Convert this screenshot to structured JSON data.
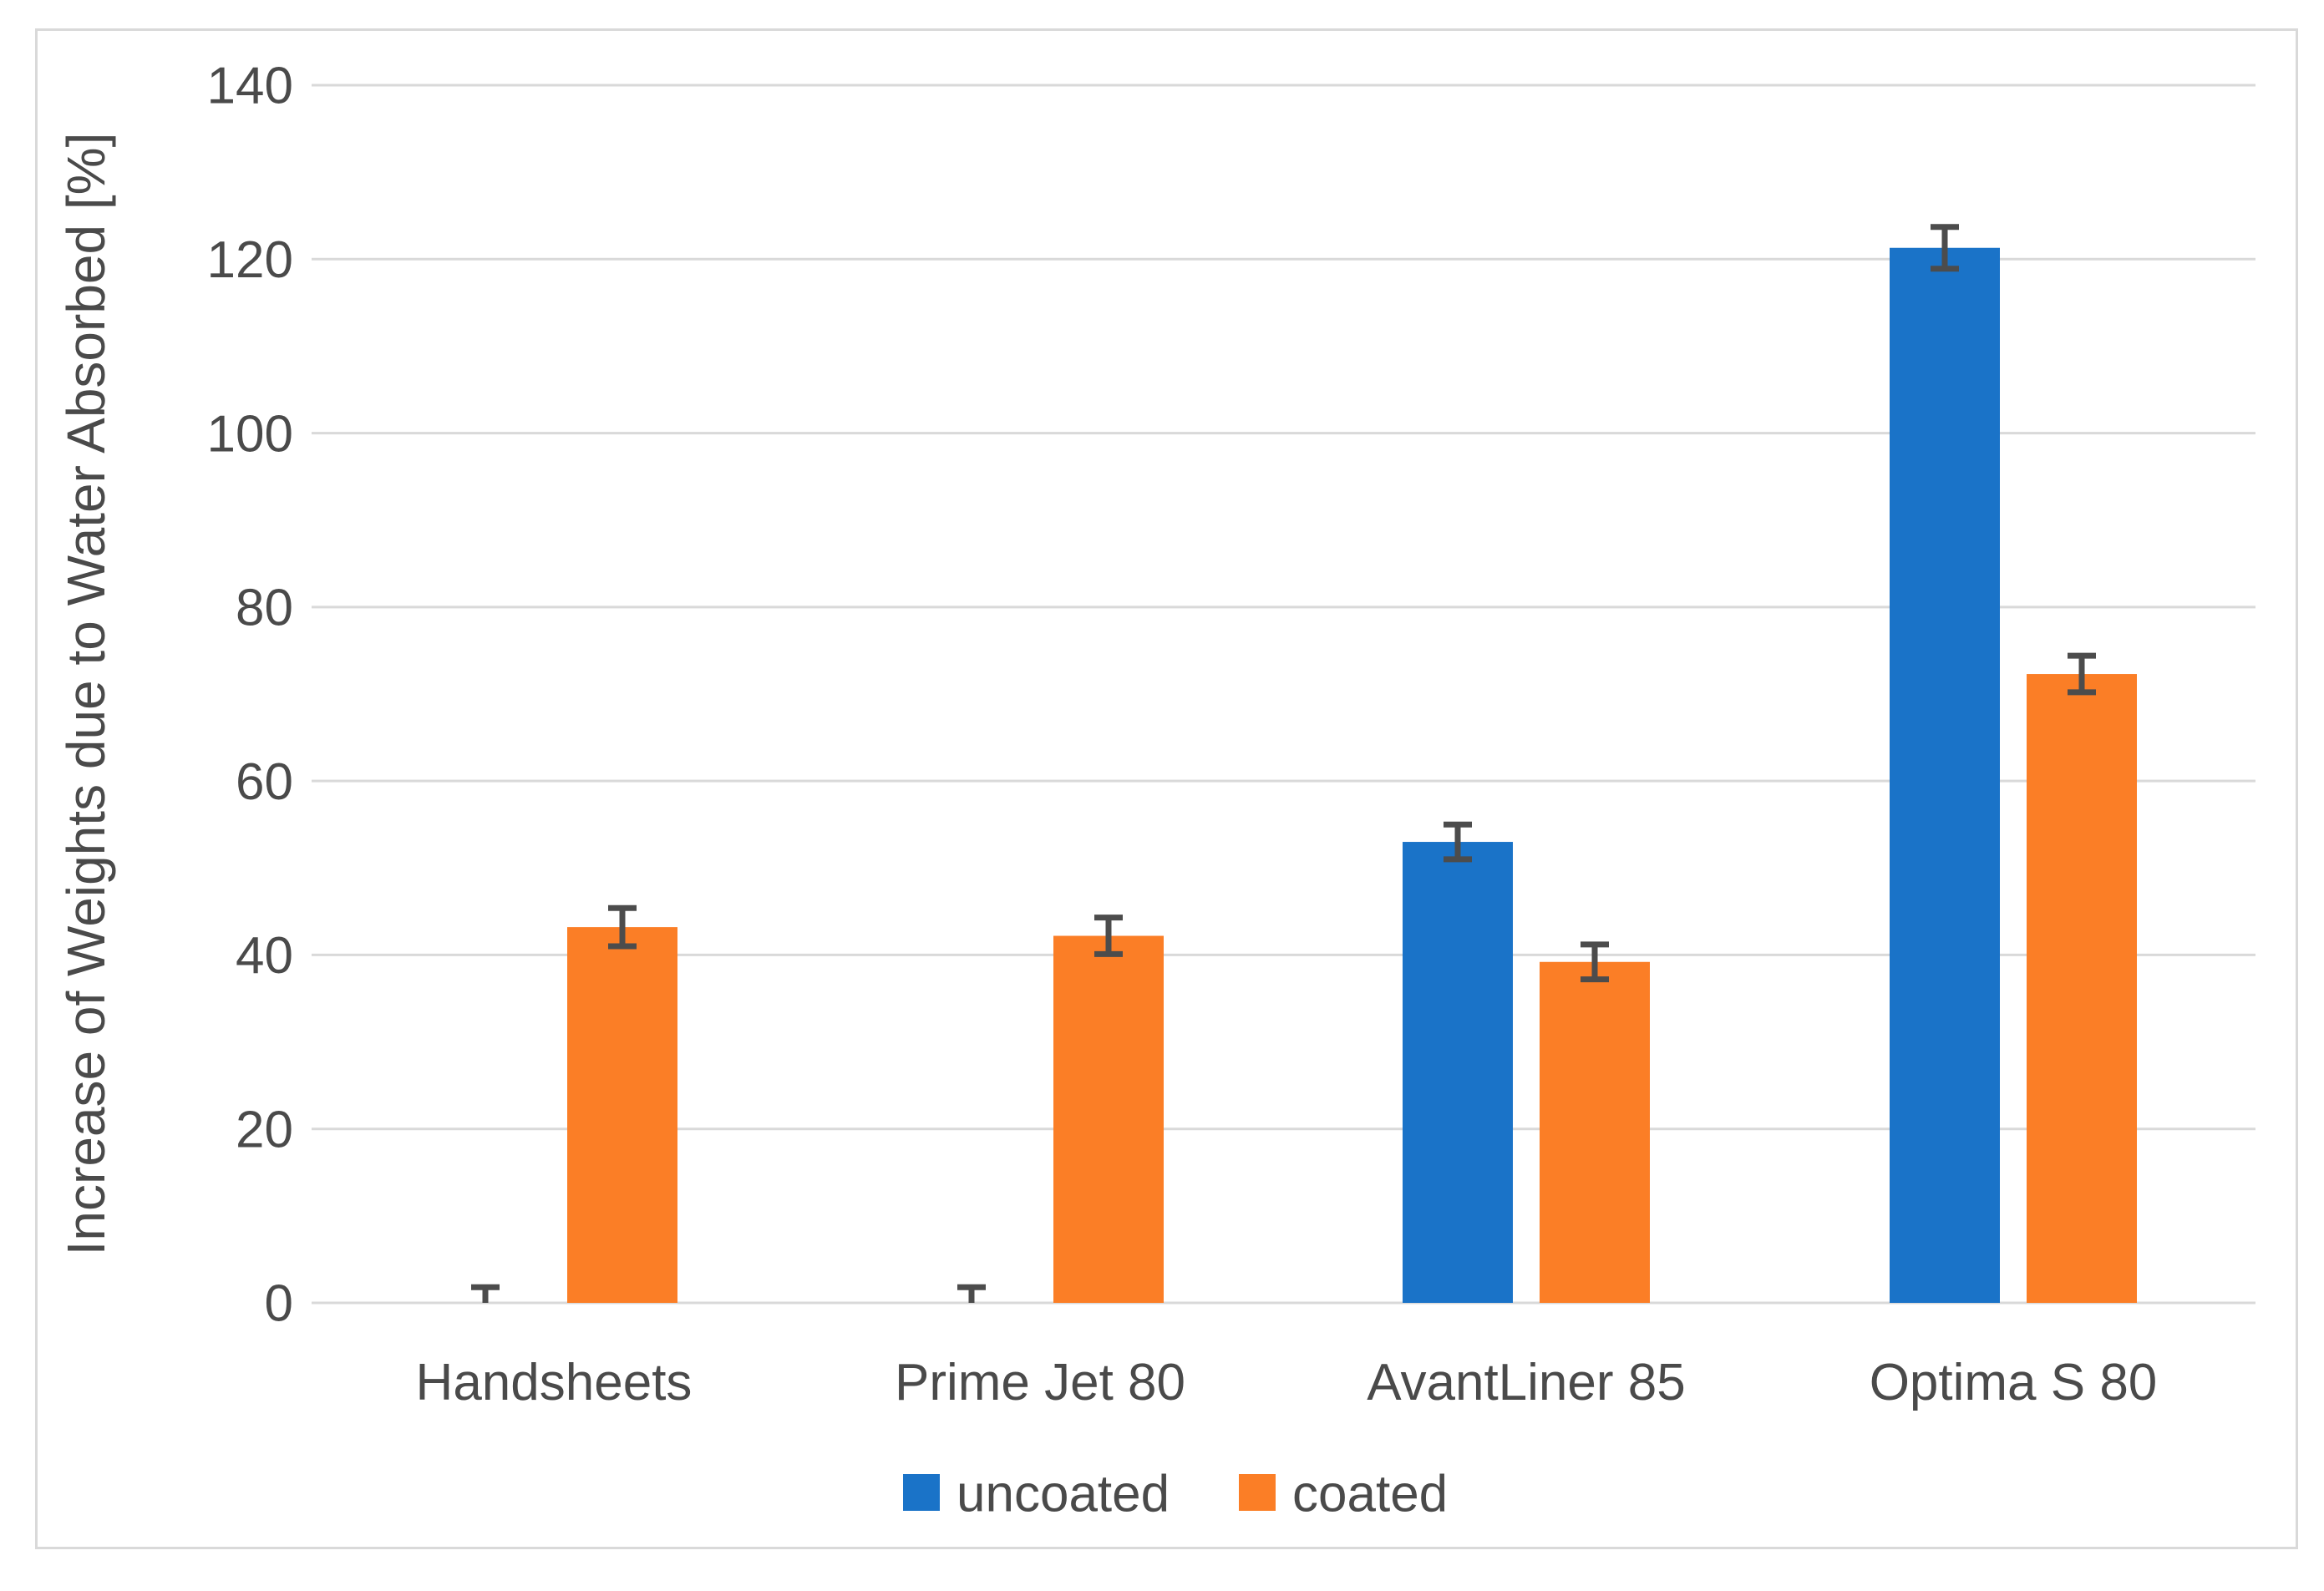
{
  "figure": {
    "background": "#FFFFFF",
    "border_color": "#D9D9D9"
  },
  "chart_data": {
    "type": "bar",
    "title": "",
    "xlabel": "",
    "ylabel": "Increase of Weights due to Water Absorbed [%]",
    "categories": [
      "Handsheets",
      "Prime Jet 80",
      "AvantLiner 85",
      "Optima S 80"
    ],
    "series": [
      {
        "name": "uncoated",
        "color": "#1A73C8",
        "values": [
          0,
          0,
          53,
          121.3
        ],
        "errors": [
          1.8,
          1.8,
          2.0,
          2.4
        ]
      },
      {
        "name": "coated",
        "color": "#FB7E26",
        "values": [
          43.2,
          42.2,
          39.2,
          72.3
        ],
        "errors": [
          2.2,
          2.1,
          2.0,
          2.1
        ]
      }
    ],
    "ylim": [
      0,
      140
    ],
    "yticks": [
      0,
      20,
      40,
      60,
      80,
      100,
      120,
      140
    ],
    "grid": true,
    "error_bars": true,
    "legend_position": "bottom",
    "legend": [
      "uncoated",
      "coated"
    ],
    "colors": {
      "gridline": "#D9D9D9",
      "axis_line": "#D9D9D9",
      "tick_text": "#4A4A4A",
      "category_text": "#4A4A4A",
      "legend_text": "#4A4A4A",
      "ylabel_text": "#4A4A4A",
      "error_bar": "#4C4C4C"
    }
  }
}
